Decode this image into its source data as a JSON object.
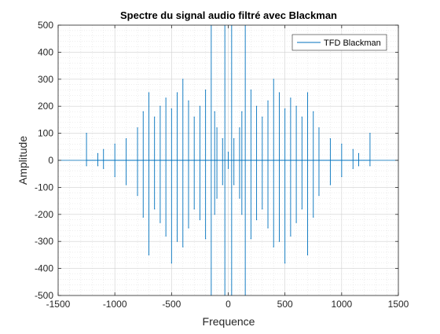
{
  "chart_data": {
    "type": "line",
    "title": "Spectre du signal audio filtré avec Blackman",
    "xlabel": "Frequence",
    "ylabel": "Amplitude",
    "xlim": [
      -1500,
      1500
    ],
    "ylim": [
      -500,
      500
    ],
    "xticks": [
      -1500,
      -1000,
      -500,
      0,
      500,
      1000,
      1500
    ],
    "yticks": [
      -500,
      -400,
      -300,
      -200,
      -100,
      0,
      100,
      200,
      300,
      400,
      500
    ],
    "grid": true,
    "minor_grid": true,
    "legend_position": "top-right",
    "series": [
      {
        "name": "TFD Blackman",
        "color": "#0072BD",
        "envelope_description": "symmetric spectrum with two dense lobes spanning about 100 to 1150 Hz in magnitude",
        "x": [
          -1250,
          -1150,
          -1100,
          -1000,
          -900,
          -800,
          -750,
          -700,
          -650,
          -600,
          -550,
          -500,
          -450,
          -400,
          -350,
          -300,
          -250,
          -200,
          -150,
          -120,
          -100,
          -50,
          -30,
          0,
          30,
          50,
          100,
          120,
          150,
          200,
          250,
          300,
          350,
          400,
          450,
          500,
          550,
          600,
          650,
          700,
          750,
          800,
          900,
          1000,
          1100,
          1150,
          1250
        ],
        "y_pos": [
          100,
          25,
          40,
          60,
          80,
          120,
          180,
          250,
          160,
          200,
          230,
          190,
          250,
          300,
          220,
          160,
          200,
          260,
          500,
          180,
          120,
          80,
          500,
          30,
          500,
          80,
          120,
          180,
          500,
          260,
          200,
          160,
          220,
          300,
          250,
          190,
          230,
          200,
          160,
          250,
          180,
          120,
          80,
          60,
          40,
          25,
          100
        ],
        "y_neg": [
          -20,
          -20,
          -30,
          -60,
          -90,
          -130,
          -210,
          -350,
          -180,
          -230,
          -280,
          -380,
          -300,
          -320,
          -250,
          -180,
          -220,
          -290,
          -500,
          -200,
          -140,
          -90,
          -500,
          -30,
          -500,
          -90,
          -140,
          -200,
          -500,
          -290,
          -220,
          -180,
          -250,
          -320,
          -300,
          -380,
          -280,
          -230,
          -180,
          -350,
          -210,
          -130,
          -90,
          -60,
          -30,
          -20,
          -20
        ]
      }
    ]
  }
}
